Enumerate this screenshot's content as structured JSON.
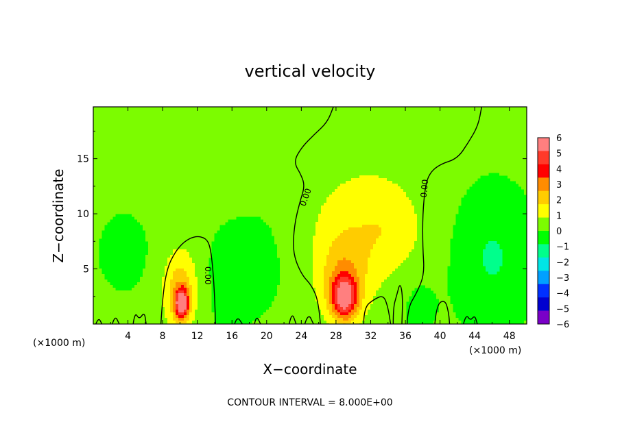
{
  "chart_data": {
    "type": "heatmap",
    "title": "vertical velocity",
    "xlabel": "X−coordinate",
    "ylabel": "Z−coordinate",
    "x_unit": "(×1000 m)",
    "y_unit": "(×1000 m)",
    "xlim": [
      0,
      50
    ],
    "ylim": [
      0,
      19.7
    ],
    "x_ticks": [
      4,
      8,
      12,
      16,
      20,
      24,
      28,
      32,
      36,
      40,
      44,
      48
    ],
    "y_ticks": [
      5,
      10,
      15
    ],
    "footer": "CONTOUR INTERVAL = 8.000E+00",
    "colorbar": {
      "levels": [
        6,
        5,
        4,
        3,
        2,
        1,
        0,
        -1,
        -2,
        -3,
        -4,
        -5,
        -6
      ],
      "labels": [
        "6",
        "5",
        "4",
        "3",
        "2",
        "1",
        "0",
        "−1",
        "−2",
        "−3",
        "−4",
        "−5",
        "−6"
      ],
      "colors": [
        "#ff7f7f",
        "#ff3a2a",
        "#ff0000",
        "#ff8c00",
        "#ffcc00",
        "#ffff00",
        "#7cfc00",
        "#00ff00",
        "#00ff8c",
        "#00e6e6",
        "#00a0ff",
        "#0030ff",
        "#0000d0",
        "#7a00c8"
      ]
    },
    "background_value": 0.2,
    "features": [
      {
        "x": 10.2,
        "z": 1.9,
        "amp": 6.0,
        "sx": 0.55,
        "sz": 0.9
      },
      {
        "x": 10.0,
        "z": 3.0,
        "amp": 2.5,
        "sx": 1.4,
        "sz": 2.6
      },
      {
        "x": 29.0,
        "z": 2.4,
        "amp": 5.5,
        "sx": 1.0,
        "sz": 1.3
      },
      {
        "x": 28.8,
        "z": 4.0,
        "amp": 2.2,
        "sx": 2.0,
        "sz": 2.8
      },
      {
        "x": 31.0,
        "z": 9.0,
        "amp": 1.2,
        "sx": 5.0,
        "sz": 4.5
      },
      {
        "x": 34.0,
        "z": 8.5,
        "amp": 0.7,
        "sx": 2.5,
        "sz": 2.5
      },
      {
        "x": 46.0,
        "z": 6.0,
        "amp": -1.3,
        "sx": 3.0,
        "sz": 4.0
      },
      {
        "x": 3.5,
        "z": 6.5,
        "amp": -0.4,
        "sx": 2.5,
        "sz": 3.0
      },
      {
        "x": 15.5,
        "z": 4.0,
        "amp": -0.5,
        "sx": 2.0,
        "sz": 3.5
      },
      {
        "x": 20.0,
        "z": 6.0,
        "amp": -0.4,
        "sx": 2.5,
        "sz": 4.0
      },
      {
        "x": 37.5,
        "z": 1.8,
        "amp": -0.6,
        "sx": 1.5,
        "sz": 2.0
      }
    ],
    "contour_label": "0.00",
    "contours": [
      [
        [
          7.8,
          0
        ],
        [
          8.0,
          2.5
        ],
        [
          8.5,
          5.0
        ],
        [
          9.4,
          6.5
        ],
        [
          10.5,
          7.5
        ],
        [
          11.8,
          8.0
        ],
        [
          13.0,
          7.8
        ],
        [
          13.5,
          7.0
        ],
        [
          13.8,
          5.0
        ],
        [
          14.0,
          2.5
        ],
        [
          14.1,
          0
        ]
      ],
      [
        [
          26.2,
          0
        ],
        [
          26.0,
          2.0
        ],
        [
          25.2,
          3.5
        ],
        [
          24.0,
          4.5
        ],
        [
          23.0,
          6.5
        ],
        [
          23.2,
          9.0
        ],
        [
          23.8,
          11.0
        ],
        [
          24.4,
          12.5
        ],
        [
          24.0,
          13.5
        ],
        [
          23.1,
          14.7
        ],
        [
          24.0,
          16.0
        ],
        [
          25.5,
          17.2
        ],
        [
          27.0,
          18.3
        ],
        [
          27.7,
          19.7
        ]
      ],
      [
        [
          36.2,
          0
        ],
        [
          36.3,
          1.5
        ],
        [
          37.3,
          2.8
        ],
        [
          38.2,
          4.5
        ],
        [
          38.0,
          7.0
        ],
        [
          38.0,
          10.0
        ],
        [
          38.3,
          12.5
        ],
        [
          38.8,
          13.7
        ],
        [
          40.0,
          14.5
        ],
        [
          42.0,
          15.0
        ],
        [
          43.3,
          16.5
        ],
        [
          44.4,
          18.0
        ],
        [
          44.8,
          19.7
        ]
      ],
      [
        [
          31.2,
          0
        ],
        [
          31.2,
          1.5
        ],
        [
          32.5,
          2.3
        ],
        [
          33.5,
          2.6
        ],
        [
          34.0,
          1.5
        ],
        [
          34.3,
          0
        ]
      ],
      [
        [
          34.6,
          0
        ],
        [
          34.6,
          1.5
        ],
        [
          35.0,
          2.6
        ],
        [
          35.4,
          3.8
        ],
        [
          35.7,
          2.5
        ],
        [
          35.6,
          0
        ]
      ],
      [
        [
          39.4,
          0
        ],
        [
          39.6,
          1.8
        ],
        [
          40.6,
          2.2
        ],
        [
          41.0,
          1.0
        ],
        [
          41.1,
          0
        ]
      ],
      [
        [
          2.2,
          0
        ],
        [
          2.5,
          0.8
        ],
        [
          3.0,
          0
        ]
      ],
      [
        [
          4.6,
          0
        ],
        [
          4.8,
          1.1
        ],
        [
          5.3,
          0.4
        ],
        [
          5.9,
          1.1
        ],
        [
          6.1,
          0
        ]
      ],
      [
        [
          16.3,
          0
        ],
        [
          16.6,
          0.7
        ],
        [
          17.2,
          0
        ]
      ],
      [
        [
          18.6,
          0
        ],
        [
          18.8,
          0.8
        ],
        [
          19.3,
          0
        ]
      ],
      [
        [
          22.6,
          0
        ],
        [
          22.9,
          1.1
        ],
        [
          23.4,
          0
        ]
      ],
      [
        [
          24.4,
          0
        ],
        [
          24.8,
          1.0
        ],
        [
          25.4,
          0
        ]
      ],
      [
        [
          42.7,
          0
        ],
        [
          43.0,
          0.9
        ],
        [
          43.5,
          0.3
        ],
        [
          44.0,
          0.8
        ],
        [
          44.3,
          0
        ]
      ],
      [
        [
          0.3,
          0
        ],
        [
          0.6,
          0.6
        ],
        [
          1.0,
          0
        ]
      ]
    ],
    "contour_labels": [
      {
        "x": 13.2,
        "z": 4.4,
        "rot": 90
      },
      {
        "x": 24.5,
        "z": 11.5,
        "rot": -70
      },
      {
        "x": 38.2,
        "z": 12.3,
        "rot": -85
      }
    ]
  }
}
